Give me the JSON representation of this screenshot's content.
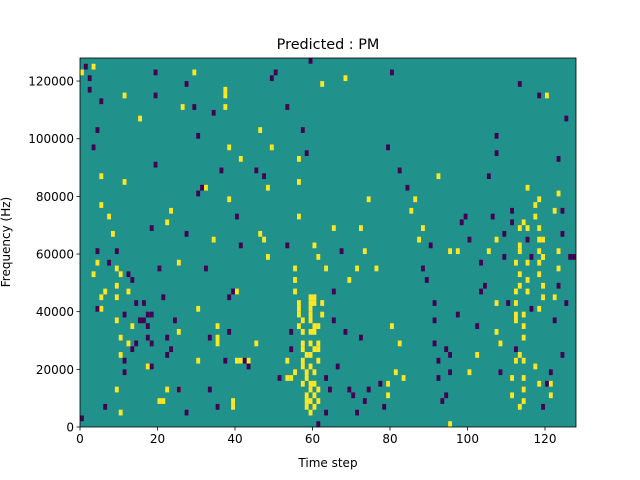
{
  "chart_data": {
    "type": "heatmap",
    "title": "Predicted : PM",
    "xlabel": "Time step",
    "ylabel": "Frequency (Hz)",
    "xlim": [
      0,
      128
    ],
    "ylim": [
      0,
      128000
    ],
    "x_ticks": [
      0,
      20,
      40,
      60,
      80,
      100,
      120
    ],
    "y_ticks": [
      0,
      20000,
      40000,
      60000,
      80000,
      100000,
      120000
    ],
    "y_tick_labels": [
      "0",
      "20000",
      "40000",
      "60000",
      "80000",
      "100000",
      "120000"
    ],
    "grid": false,
    "colors": {
      "background": "#21918c",
      "high": "#fde725",
      "low": "#440154",
      "axis": "#000000"
    },
    "cell_size": {
      "time_steps": 1,
      "frequency_hz": 2000
    },
    "cells_high": [
      [
        1,
        124000
      ],
      [
        4,
        126000
      ],
      [
        6,
        88000
      ],
      [
        6,
        78000
      ],
      [
        5,
        58000
      ],
      [
        4,
        54000
      ],
      [
        6,
        46000
      ],
      [
        7,
        48000
      ],
      [
        6,
        42000
      ],
      [
        8,
        74000
      ],
      [
        9,
        68000
      ],
      [
        10,
        56000
      ],
      [
        10,
        50000
      ],
      [
        10,
        46000
      ],
      [
        10,
        38000
      ],
      [
        11,
        54000
      ],
      [
        11,
        32000
      ],
      [
        11,
        26000
      ],
      [
        10,
        14000
      ],
      [
        11,
        6000
      ],
      [
        12,
        86000
      ],
      [
        12,
        116000
      ],
      [
        13,
        48000
      ],
      [
        14,
        36000
      ],
      [
        13,
        30000
      ],
      [
        16,
        108000
      ],
      [
        18,
        22000
      ],
      [
        21,
        10000
      ],
      [
        22,
        10000
      ],
      [
        23,
        14000
      ],
      [
        23,
        72000
      ],
      [
        24,
        76000
      ],
      [
        26,
        14000
      ],
      [
        26,
        58000
      ],
      [
        26,
        34000
      ],
      [
        27,
        112000
      ],
      [
        30,
        124000
      ],
      [
        31,
        42000
      ],
      [
        31,
        24000
      ],
      [
        33,
        84000
      ],
      [
        35,
        66000
      ],
      [
        36,
        36000
      ],
      [
        36,
        32000
      ],
      [
        36,
        30000
      ],
      [
        38,
        118000
      ],
      [
        38,
        116000
      ],
      [
        38,
        112000
      ],
      [
        39,
        98000
      ],
      [
        39,
        80000
      ],
      [
        40,
        10000
      ],
      [
        40,
        8000
      ],
      [
        41,
        48000
      ],
      [
        41,
        24000
      ],
      [
        42,
        24000
      ],
      [
        42,
        94000
      ],
      [
        44,
        24000
      ],
      [
        46,
        30000
      ],
      [
        47,
        68000
      ],
      [
        47,
        104000
      ],
      [
        48,
        66000
      ],
      [
        49,
        60000
      ],
      [
        49,
        84000
      ],
      [
        50,
        98000
      ],
      [
        54,
        24000
      ],
      [
        54,
        18000
      ],
      [
        55,
        18000
      ],
      [
        56,
        20000
      ],
      [
        56,
        56000
      ],
      [
        57,
        94000
      ],
      [
        57,
        86000
      ],
      [
        57,
        74000
      ],
      [
        56,
        52000
      ],
      [
        56,
        48000
      ],
      [
        57,
        44000
      ],
      [
        57,
        42000
      ],
      [
        57,
        40000
      ],
      [
        58,
        38000
      ],
      [
        57,
        36000
      ],
      [
        58,
        34000
      ],
      [
        58,
        30000
      ],
      [
        58,
        28000
      ],
      [
        59,
        26000
      ],
      [
        58,
        24000
      ],
      [
        58,
        22000
      ],
      [
        59,
        20000
      ],
      [
        59,
        18000
      ],
      [
        58,
        16000
      ],
      [
        59,
        12000
      ],
      [
        59,
        10000
      ],
      [
        59,
        8000
      ],
      [
        60,
        46000
      ],
      [
        60,
        44000
      ],
      [
        60,
        42000
      ],
      [
        60,
        40000
      ],
      [
        60,
        38000
      ],
      [
        60,
        34000
      ],
      [
        60,
        30000
      ],
      [
        60,
        26000
      ],
      [
        60,
        22000
      ],
      [
        60,
        16000
      ],
      [
        60,
        14000
      ],
      [
        60,
        10000
      ],
      [
        60,
        6000
      ],
      [
        61,
        46000
      ],
      [
        61,
        44000
      ],
      [
        61,
        36000
      ],
      [
        61,
        34000
      ],
      [
        61,
        28000
      ],
      [
        61,
        20000
      ],
      [
        61,
        16000
      ],
      [
        61,
        12000
      ],
      [
        61,
        8000
      ],
      [
        62,
        30000
      ],
      [
        62,
        28000
      ],
      [
        62,
        24000
      ],
      [
        62,
        14000
      ],
      [
        62,
        10000
      ],
      [
        62,
        36000
      ],
      [
        61,
        64000
      ],
      [
        62,
        60000
      ],
      [
        63,
        40000
      ],
      [
        63,
        44000
      ],
      [
        63,
        120000
      ],
      [
        64,
        56000
      ],
      [
        66,
        70000
      ],
      [
        69,
        122000
      ],
      [
        70,
        52000
      ],
      [
        72,
        56000
      ],
      [
        73,
        70000
      ],
      [
        74,
        62000
      ],
      [
        75,
        80000
      ],
      [
        77,
        56000
      ],
      [
        80,
        16000
      ],
      [
        80,
        12000
      ],
      [
        81,
        36000
      ],
      [
        82,
        20000
      ],
      [
        83,
        30000
      ],
      [
        84,
        18000
      ],
      [
        86,
        76000
      ],
      [
        87,
        80000
      ],
      [
        88,
        66000
      ],
      [
        89,
        70000
      ],
      [
        93,
        88000
      ],
      [
        96,
        2000
      ],
      [
        96,
        62000
      ],
      [
        98,
        62000
      ],
      [
        101,
        20000
      ],
      [
        103,
        26000
      ],
      [
        106,
        62000
      ],
      [
        108,
        66000
      ],
      [
        108,
        44000
      ],
      [
        108,
        34000
      ],
      [
        109,
        30000
      ],
      [
        112,
        18000
      ],
      [
        112,
        12000
      ],
      [
        113,
        24000
      ],
      [
        113,
        38000
      ],
      [
        113,
        40000
      ],
      [
        113,
        44000
      ],
      [
        113,
        48000
      ],
      [
        113,
        58000
      ],
      [
        114,
        54000
      ],
      [
        114,
        62000
      ],
      [
        114,
        64000
      ],
      [
        114,
        70000
      ],
      [
        115,
        72000
      ],
      [
        114,
        50000
      ],
      [
        114,
        26000
      ],
      [
        115,
        24000
      ],
      [
        115,
        18000
      ],
      [
        115,
        14000
      ],
      [
        115,
        10000
      ],
      [
        114,
        8000
      ],
      [
        115,
        32000
      ],
      [
        115,
        36000
      ],
      [
        115,
        40000
      ],
      [
        116,
        48000
      ],
      [
        116,
        52000
      ],
      [
        116,
        58000
      ],
      [
        116,
        70000
      ],
      [
        116,
        84000
      ],
      [
        118,
        78000
      ],
      [
        118,
        74000
      ],
      [
        119,
        70000
      ],
      [
        119,
        66000
      ],
      [
        119,
        62000
      ],
      [
        119,
        58000
      ],
      [
        119,
        54000
      ],
      [
        120,
        60000
      ],
      [
        120,
        66000
      ],
      [
        120,
        50000
      ],
      [
        119,
        42000
      ],
      [
        120,
        46000
      ],
      [
        119,
        80000
      ],
      [
        118,
        22000
      ],
      [
        119,
        16000
      ],
      [
        120,
        60000
      ],
      [
        121,
        116000
      ],
      [
        122,
        12000
      ],
      [
        122,
        16000
      ],
      [
        123,
        76000
      ],
      [
        124,
        82000
      ],
      [
        124,
        62000
      ],
      [
        124,
        56000
      ],
      [
        123,
        46000
      ]
    ],
    "cells_low": [
      [
        1,
        4000
      ],
      [
        2,
        126000
      ],
      [
        3,
        118000
      ],
      [
        3,
        122000
      ],
      [
        4,
        98000
      ],
      [
        5,
        104000
      ],
      [
        5,
        62000
      ],
      [
        5,
        42000
      ],
      [
        6,
        114000
      ],
      [
        7,
        8000
      ],
      [
        8,
        58000
      ],
      [
        10,
        62000
      ],
      [
        12,
        40000
      ],
      [
        12,
        20000
      ],
      [
        12,
        24000
      ],
      [
        13,
        54000
      ],
      [
        14,
        52000
      ],
      [
        14,
        28000
      ],
      [
        15,
        44000
      ],
      [
        15,
        30000
      ],
      [
        16,
        38000
      ],
      [
        17,
        38000
      ],
      [
        17,
        44000
      ],
      [
        18,
        40000
      ],
      [
        18,
        32000
      ],
      [
        18,
        36000
      ],
      [
        19,
        40000
      ],
      [
        19,
        30000
      ],
      [
        19,
        22000
      ],
      [
        19,
        70000
      ],
      [
        20,
        92000
      ],
      [
        20,
        116000
      ],
      [
        20,
        124000
      ],
      [
        21,
        56000
      ],
      [
        22,
        46000
      ],
      [
        23,
        32000
      ],
      [
        23,
        26000
      ],
      [
        24,
        28000
      ],
      [
        25,
        38000
      ],
      [
        26,
        14000
      ],
      [
        28,
        6000
      ],
      [
        28,
        68000
      ],
      [
        28,
        120000
      ],
      [
        30,
        112000
      ],
      [
        31,
        102000
      ],
      [
        31,
        82000
      ],
      [
        32,
        84000
      ],
      [
        33,
        56000
      ],
      [
        34,
        32000
      ],
      [
        34,
        14000
      ],
      [
        35,
        110000
      ],
      [
        36,
        8000
      ],
      [
        37,
        90000
      ],
      [
        38,
        24000
      ],
      [
        39,
        34000
      ],
      [
        39,
        46000
      ],
      [
        40,
        48000
      ],
      [
        41,
        74000
      ],
      [
        42,
        64000
      ],
      [
        43,
        24000
      ],
      [
        44,
        22000
      ],
      [
        46,
        90000
      ],
      [
        48,
        88000
      ],
      [
        50,
        122000
      ],
      [
        51,
        124000
      ],
      [
        52,
        18000
      ],
      [
        54,
        64000
      ],
      [
        54,
        112000
      ],
      [
        55,
        34000
      ],
      [
        55,
        28000
      ],
      [
        58,
        104000
      ],
      [
        59,
        96000
      ],
      [
        60,
        128000
      ],
      [
        62,
        2000
      ],
      [
        64,
        6000
      ],
      [
        64,
        18000
      ],
      [
        65,
        14000
      ],
      [
        66,
        48000
      ],
      [
        66,
        38000
      ],
      [
        67,
        22000
      ],
      [
        68,
        62000
      ],
      [
        69,
        34000
      ],
      [
        70,
        14000
      ],
      [
        71,
        12000
      ],
      [
        72,
        6000
      ],
      [
        73,
        32000
      ],
      [
        74,
        10000
      ],
      [
        75,
        14000
      ],
      [
        78,
        16000
      ],
      [
        79,
        8000
      ],
      [
        80,
        98000
      ],
      [
        81,
        124000
      ],
      [
        83,
        90000
      ],
      [
        85,
        84000
      ],
      [
        89,
        56000
      ],
      [
        90,
        52000
      ],
      [
        91,
        64000
      ],
      [
        92,
        38000
      ],
      [
        92,
        44000
      ],
      [
        92,
        30000
      ],
      [
        93,
        24000
      ],
      [
        93,
        18000
      ],
      [
        94,
        10000
      ],
      [
        95,
        12000
      ],
      [
        95,
        28000
      ],
      [
        96,
        20000
      ],
      [
        96,
        26000
      ],
      [
        98,
        40000
      ],
      [
        99,
        72000
      ],
      [
        100,
        74000
      ],
      [
        101,
        66000
      ],
      [
        103,
        36000
      ],
      [
        104,
        58000
      ],
      [
        104,
        48000
      ],
      [
        105,
        50000
      ],
      [
        106,
        88000
      ],
      [
        107,
        74000
      ],
      [
        108,
        102000
      ],
      [
        108,
        96000
      ],
      [
        109,
        20000
      ],
      [
        110,
        60000
      ],
      [
        110,
        68000
      ],
      [
        111,
        44000
      ],
      [
        112,
        72000
      ],
      [
        112,
        76000
      ],
      [
        113,
        28000
      ],
      [
        114,
        120000
      ],
      [
        116,
        66000
      ],
      [
        117,
        60000
      ],
      [
        117,
        42000
      ],
      [
        119,
        116000
      ],
      [
        120,
        8000
      ],
      [
        121,
        16000
      ],
      [
        122,
        20000
      ],
      [
        123,
        38000
      ],
      [
        124,
        50000
      ],
      [
        125,
        68000
      ],
      [
        125,
        76000
      ],
      [
        126,
        44000
      ],
      [
        126,
        108000
      ],
      [
        127,
        60000
      ],
      [
        128,
        60000
      ],
      [
        125,
        26000
      ],
      [
        124,
        94000
      ]
    ]
  }
}
